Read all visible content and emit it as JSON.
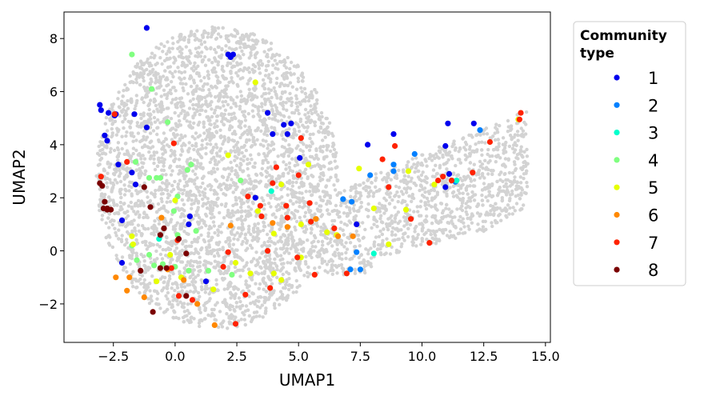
{
  "chart_data": {
    "type": "scatter",
    "title": "",
    "xlabel": "UMAP1",
    "ylabel": "UMAP2",
    "xlim": [
      -4.5,
      15.2
    ],
    "ylim": [
      -3.45,
      9.0
    ],
    "xticks": [
      -2.5,
      0.0,
      2.5,
      5.0,
      7.5,
      10.0,
      12.5,
      15.0
    ],
    "xtick_labels": [
      "−2.5",
      "0.0",
      "2.5",
      "5.0",
      "7.5",
      "10.0",
      "12.5",
      "15.0"
    ],
    "yticks": [
      -2,
      0,
      2,
      4,
      6,
      8
    ],
    "ytick_labels": [
      "−2",
      "0",
      "2",
      "4",
      "6",
      "8"
    ],
    "grid": false,
    "legend": {
      "title_lines": [
        "Community",
        "type"
      ],
      "placement": "outside-right"
    },
    "background_color": "#d3d3d3",
    "series": [
      {
        "name": "1",
        "color": "#0000ee",
        "points": [
          [
            -1.15,
            8.4
          ],
          [
            2.15,
            7.4
          ],
          [
            2.25,
            7.3
          ],
          [
            2.35,
            7.4
          ],
          [
            -3.05,
            5.5
          ],
          [
            -3.0,
            5.3
          ],
          [
            -2.7,
            5.2
          ],
          [
            -2.45,
            5.1
          ],
          [
            -2.4,
            5.15
          ],
          [
            -2.85,
            4.35
          ],
          [
            -2.75,
            4.15
          ],
          [
            -1.65,
            5.15
          ],
          [
            -1.15,
            4.65
          ],
          [
            -2.3,
            3.25
          ],
          [
            -1.75,
            2.95
          ],
          [
            -1.6,
            2.5
          ],
          [
            -2.15,
            1.15
          ],
          [
            -2.15,
            -0.45
          ],
          [
            0.55,
            1.0
          ],
          [
            0.6,
            1.3
          ],
          [
            1.25,
            -1.15
          ],
          [
            3.25,
            2.0
          ],
          [
            3.75,
            5.2
          ],
          [
            3.95,
            4.4
          ],
          [
            4.4,
            4.75
          ],
          [
            4.55,
            4.4
          ],
          [
            4.7,
            4.8
          ],
          [
            5.05,
            3.5
          ],
          [
            7.35,
            1.0
          ],
          [
            7.8,
            4.0
          ],
          [
            8.85,
            4.4
          ],
          [
            10.95,
            3.95
          ],
          [
            11.05,
            4.8
          ],
          [
            10.95,
            2.4
          ],
          [
            11.1,
            2.9
          ],
          [
            12.1,
            4.8
          ]
        ]
      },
      {
        "name": "2",
        "color": "#0080ff",
        "points": [
          [
            6.8,
            1.95
          ],
          [
            7.15,
            1.85
          ],
          [
            7.1,
            -0.7
          ],
          [
            7.35,
            -0.05
          ],
          [
            7.5,
            -0.7
          ],
          [
            7.9,
            2.85
          ],
          [
            8.85,
            3.0
          ],
          [
            8.85,
            3.25
          ],
          [
            9.7,
            3.65
          ],
          [
            11.35,
            2.6
          ],
          [
            12.35,
            4.55
          ]
        ]
      },
      {
        "name": "3",
        "color": "#00ffcc",
        "points": [
          [
            -0.65,
            0.45
          ],
          [
            3.9,
            2.25
          ],
          [
            8.05,
            -0.1
          ],
          [
            11.4,
            2.65
          ]
        ]
      },
      {
        "name": "4",
        "color": "#80ff80",
        "points": [
          [
            -1.75,
            7.4
          ],
          [
            -0.95,
            6.1
          ],
          [
            -0.3,
            4.85
          ],
          [
            -1.6,
            3.35
          ],
          [
            -0.75,
            2.75
          ],
          [
            -0.6,
            2.75
          ],
          [
            -1.05,
            2.75
          ],
          [
            0.5,
            3.05
          ],
          [
            0.65,
            3.25
          ],
          [
            0.1,
            2.05
          ],
          [
            -0.05,
            1.5
          ],
          [
            0.1,
            0.6
          ],
          [
            -1.75,
            0.2
          ],
          [
            -1.05,
            -0.15
          ],
          [
            -1.55,
            -0.35
          ],
          [
            -0.85,
            -0.55
          ],
          [
            -0.5,
            -0.5
          ],
          [
            0.0,
            -0.6
          ],
          [
            0.55,
            -0.75
          ],
          [
            0.85,
            0.75
          ],
          [
            1.35,
            -0.75
          ],
          [
            2.3,
            -0.9
          ],
          [
            2.65,
            2.65
          ]
        ]
      },
      {
        "name": "5",
        "color": "#e6ff00",
        "points": [
          [
            3.25,
            6.35
          ],
          [
            2.15,
            3.6
          ],
          [
            0.0,
            1.9
          ],
          [
            -1.75,
            0.55
          ],
          [
            -1.7,
            0.25
          ],
          [
            -0.2,
            -0.15
          ],
          [
            -0.75,
            -1.15
          ],
          [
            0.25,
            -1.0
          ],
          [
            1.55,
            -1.45
          ],
          [
            2.45,
            -0.45
          ],
          [
            3.05,
            -0.85
          ],
          [
            4.0,
            -0.85
          ],
          [
            4.3,
            -1.1
          ],
          [
            3.35,
            1.5
          ],
          [
            4.0,
            0.65
          ],
          [
            4.3,
            2.5
          ],
          [
            5.1,
            -0.25
          ],
          [
            5.4,
            3.25
          ],
          [
            5.1,
            1.0
          ],
          [
            6.15,
            0.7
          ],
          [
            6.55,
            0.6
          ],
          [
            7.45,
            3.1
          ],
          [
            8.05,
            1.6
          ],
          [
            8.65,
            0.25
          ],
          [
            9.35,
            1.55
          ],
          [
            9.45,
            3.0
          ],
          [
            10.5,
            2.5
          ],
          [
            13.9,
            4.95
          ]
        ]
      },
      {
        "name": "6",
        "color": "#ff8800",
        "points": [
          [
            -2.4,
            -1.0
          ],
          [
            -1.95,
            -1.5
          ],
          [
            -1.85,
            -1.0
          ],
          [
            -1.25,
            -1.75
          ],
          [
            -0.55,
            1.25
          ],
          [
            -0.3,
            -0.7
          ],
          [
            0.35,
            -1.1
          ],
          [
            0.9,
            -2.0
          ],
          [
            1.6,
            -2.8
          ],
          [
            2.25,
            0.95
          ],
          [
            3.95,
            1.05
          ],
          [
            4.55,
            0.9
          ],
          [
            5.7,
            1.2
          ],
          [
            6.6,
            0.55
          ],
          [
            7.2,
            0.55
          ]
        ]
      },
      {
        "name": "7",
        "color": "#ff2200",
        "points": [
          [
            -3.0,
            2.8
          ],
          [
            -2.45,
            5.15
          ],
          [
            -1.95,
            3.35
          ],
          [
            -0.05,
            4.05
          ],
          [
            0.1,
            0.4
          ],
          [
            -0.15,
            -0.65
          ],
          [
            0.15,
            -1.7
          ],
          [
            0.7,
            -1.85
          ],
          [
            1.95,
            -0.6
          ],
          [
            2.15,
            -0.05
          ],
          [
            2.45,
            -2.75
          ],
          [
            2.85,
            -1.65
          ],
          [
            2.95,
            2.05
          ],
          [
            3.45,
            1.7
          ],
          [
            3.5,
            1.3
          ],
          [
            3.75,
            0.0
          ],
          [
            3.85,
            -1.4
          ],
          [
            3.95,
            2.55
          ],
          [
            4.1,
            3.15
          ],
          [
            4.5,
            1.7
          ],
          [
            4.55,
            1.25
          ],
          [
            4.95,
            -0.25
          ],
          [
            5.1,
            4.25
          ],
          [
            5.0,
            2.85
          ],
          [
            5.45,
            1.8
          ],
          [
            5.5,
            1.1
          ],
          [
            5.65,
            -0.9
          ],
          [
            6.45,
            0.85
          ],
          [
            6.95,
            -0.85
          ],
          [
            8.4,
            3.45
          ],
          [
            8.65,
            2.4
          ],
          [
            8.9,
            3.95
          ],
          [
            9.55,
            1.2
          ],
          [
            10.3,
            0.3
          ],
          [
            10.65,
            2.65
          ],
          [
            10.85,
            2.8
          ],
          [
            11.2,
            2.65
          ],
          [
            12.05,
            2.95
          ],
          [
            12.75,
            4.1
          ],
          [
            13.95,
            4.95
          ],
          [
            14.0,
            5.2
          ]
        ]
      },
      {
        "name": "8",
        "color": "#7a0000",
        "points": [
          [
            -3.05,
            2.55
          ],
          [
            -2.95,
            2.45
          ],
          [
            -2.85,
            1.85
          ],
          [
            -2.9,
            1.6
          ],
          [
            -2.75,
            1.6
          ],
          [
            -2.75,
            1.55
          ],
          [
            -2.6,
            1.55
          ],
          [
            -1.4,
            -0.75
          ],
          [
            -1.25,
            2.4
          ],
          [
            -1.0,
            1.65
          ],
          [
            -0.9,
            -2.3
          ],
          [
            -0.6,
            0.6
          ],
          [
            -0.45,
            0.85
          ],
          [
            -0.6,
            -0.65
          ],
          [
            -0.35,
            -0.65
          ],
          [
            0.15,
            0.45
          ],
          [
            0.45,
            -0.1
          ],
          [
            0.45,
            -1.7
          ]
        ]
      }
    ]
  }
}
